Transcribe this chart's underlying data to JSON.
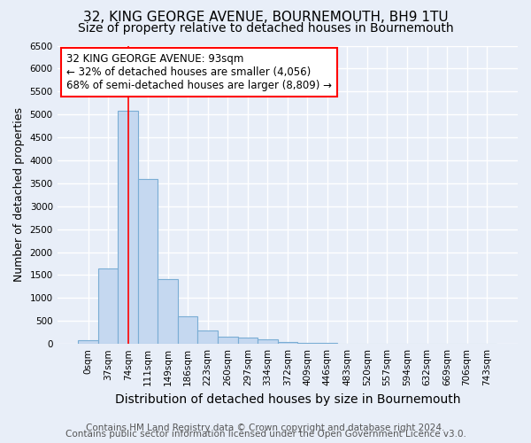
{
  "title1": "32, KING GEORGE AVENUE, BOURNEMOUTH, BH9 1TU",
  "title2": "Size of property relative to detached houses in Bournemouth",
  "xlabel": "Distribution of detached houses by size in Bournemouth",
  "ylabel": "Number of detached properties",
  "bin_labels": [
    "0sqm",
    "37sqm",
    "74sqm",
    "111sqm",
    "149sqm",
    "186sqm",
    "223sqm",
    "260sqm",
    "297sqm",
    "334sqm",
    "372sqm",
    "409sqm",
    "446sqm",
    "483sqm",
    "520sqm",
    "557sqm",
    "594sqm",
    "632sqm",
    "669sqm",
    "706sqm",
    "743sqm"
  ],
  "bin_values": [
    75,
    1650,
    5075,
    3600,
    1420,
    610,
    300,
    160,
    145,
    95,
    50,
    30,
    30,
    0,
    0,
    0,
    0,
    0,
    0,
    0,
    0
  ],
  "bar_color": "#c5d8f0",
  "bar_edge_color": "#7aadd4",
  "bar_width": 1.0,
  "annotation_text": "32 KING GEORGE AVENUE: 93sqm\n← 32% of detached houses are smaller (4,056)\n68% of semi-detached houses are larger (8,809) →",
  "annotation_box_color": "white",
  "annotation_box_edge": "red",
  "ylim": [
    0,
    6500
  ],
  "footnote1": "Contains HM Land Registry data © Crown copyright and database right 2024.",
  "footnote2": "Contains public sector information licensed under the Open Government Licence v3.0.",
  "bg_color": "#e8eef8",
  "grid_color": "white",
  "title1_fontsize": 11,
  "title2_fontsize": 10,
  "xlabel_fontsize": 10,
  "ylabel_fontsize": 9,
  "tick_fontsize": 7.5,
  "footnote_fontsize": 7.5,
  "annotation_fontsize": 8.5
}
